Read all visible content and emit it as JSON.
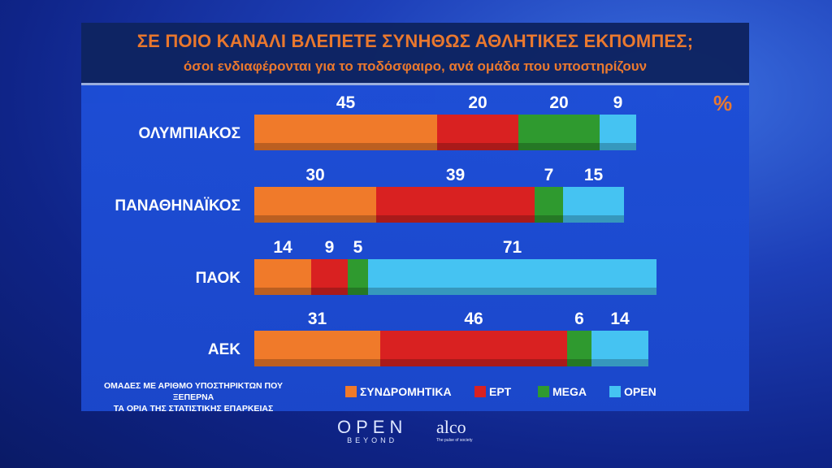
{
  "chart_data": {
    "type": "bar",
    "orientation": "horizontal",
    "stacked": true,
    "title": "ΣΕ ΠΟΙΟ ΚΑΝΑΛΙ ΒΛΕΠΕΤΕ ΣΥΝΗΘΩΣ ΑΘΛΗΤΙΚΕΣ ΕΚΠΟΜΠΕΣ;",
    "subtitle": "όσοι ενδιαφέρονται για το ποδόσφαιρο, ανά ομάδα που υποστηρίζουν",
    "unit_label": "%",
    "categories": [
      "ΟΛΥΜΠΙΑΚΟΣ",
      "ΠΑΝΑΘΗΝΑΪΚΟΣ",
      "ΠΑΟΚ",
      "ΑΕΚ"
    ],
    "series": [
      {
        "name": "ΣΥΝΔΡΟΜΗΤΙΚΑ",
        "color": "#f07a2a",
        "values": [
          45,
          30,
          14,
          31
        ]
      },
      {
        "name": "ΕΡΤ",
        "color": "#d92121",
        "values": [
          20,
          39,
          9,
          46
        ]
      },
      {
        "name": "MEGA",
        "color": "#2f9a2f",
        "values": [
          20,
          7,
          5,
          6
        ]
      },
      {
        "name": "OPEN",
        "color": "#45c3f2",
        "values": [
          9,
          15,
          71,
          14
        ]
      }
    ],
    "xlim": [
      0,
      100
    ],
    "grid": false,
    "legend": "bottom"
  },
  "footnote": [
    "ΟΜΑΔΕΣ ΜΕ ΑΡΙΘΜΟ ΥΠΟΣΤΗΡΙΚΤΩΝ ΠΟΥ ΞΕΠΕΡΝΑ",
    "ΤΑ ΟΡΙΑ ΤΗΣ ΣΤΑΤΙΣΤΙΚΗΣ ΕΠΑΡΚΕΙΑΣ"
  ],
  "logos": {
    "open": "OPEN",
    "open_sub": "BEYOND",
    "alco": "alco",
    "alco_sub": "The pulse of society"
  }
}
